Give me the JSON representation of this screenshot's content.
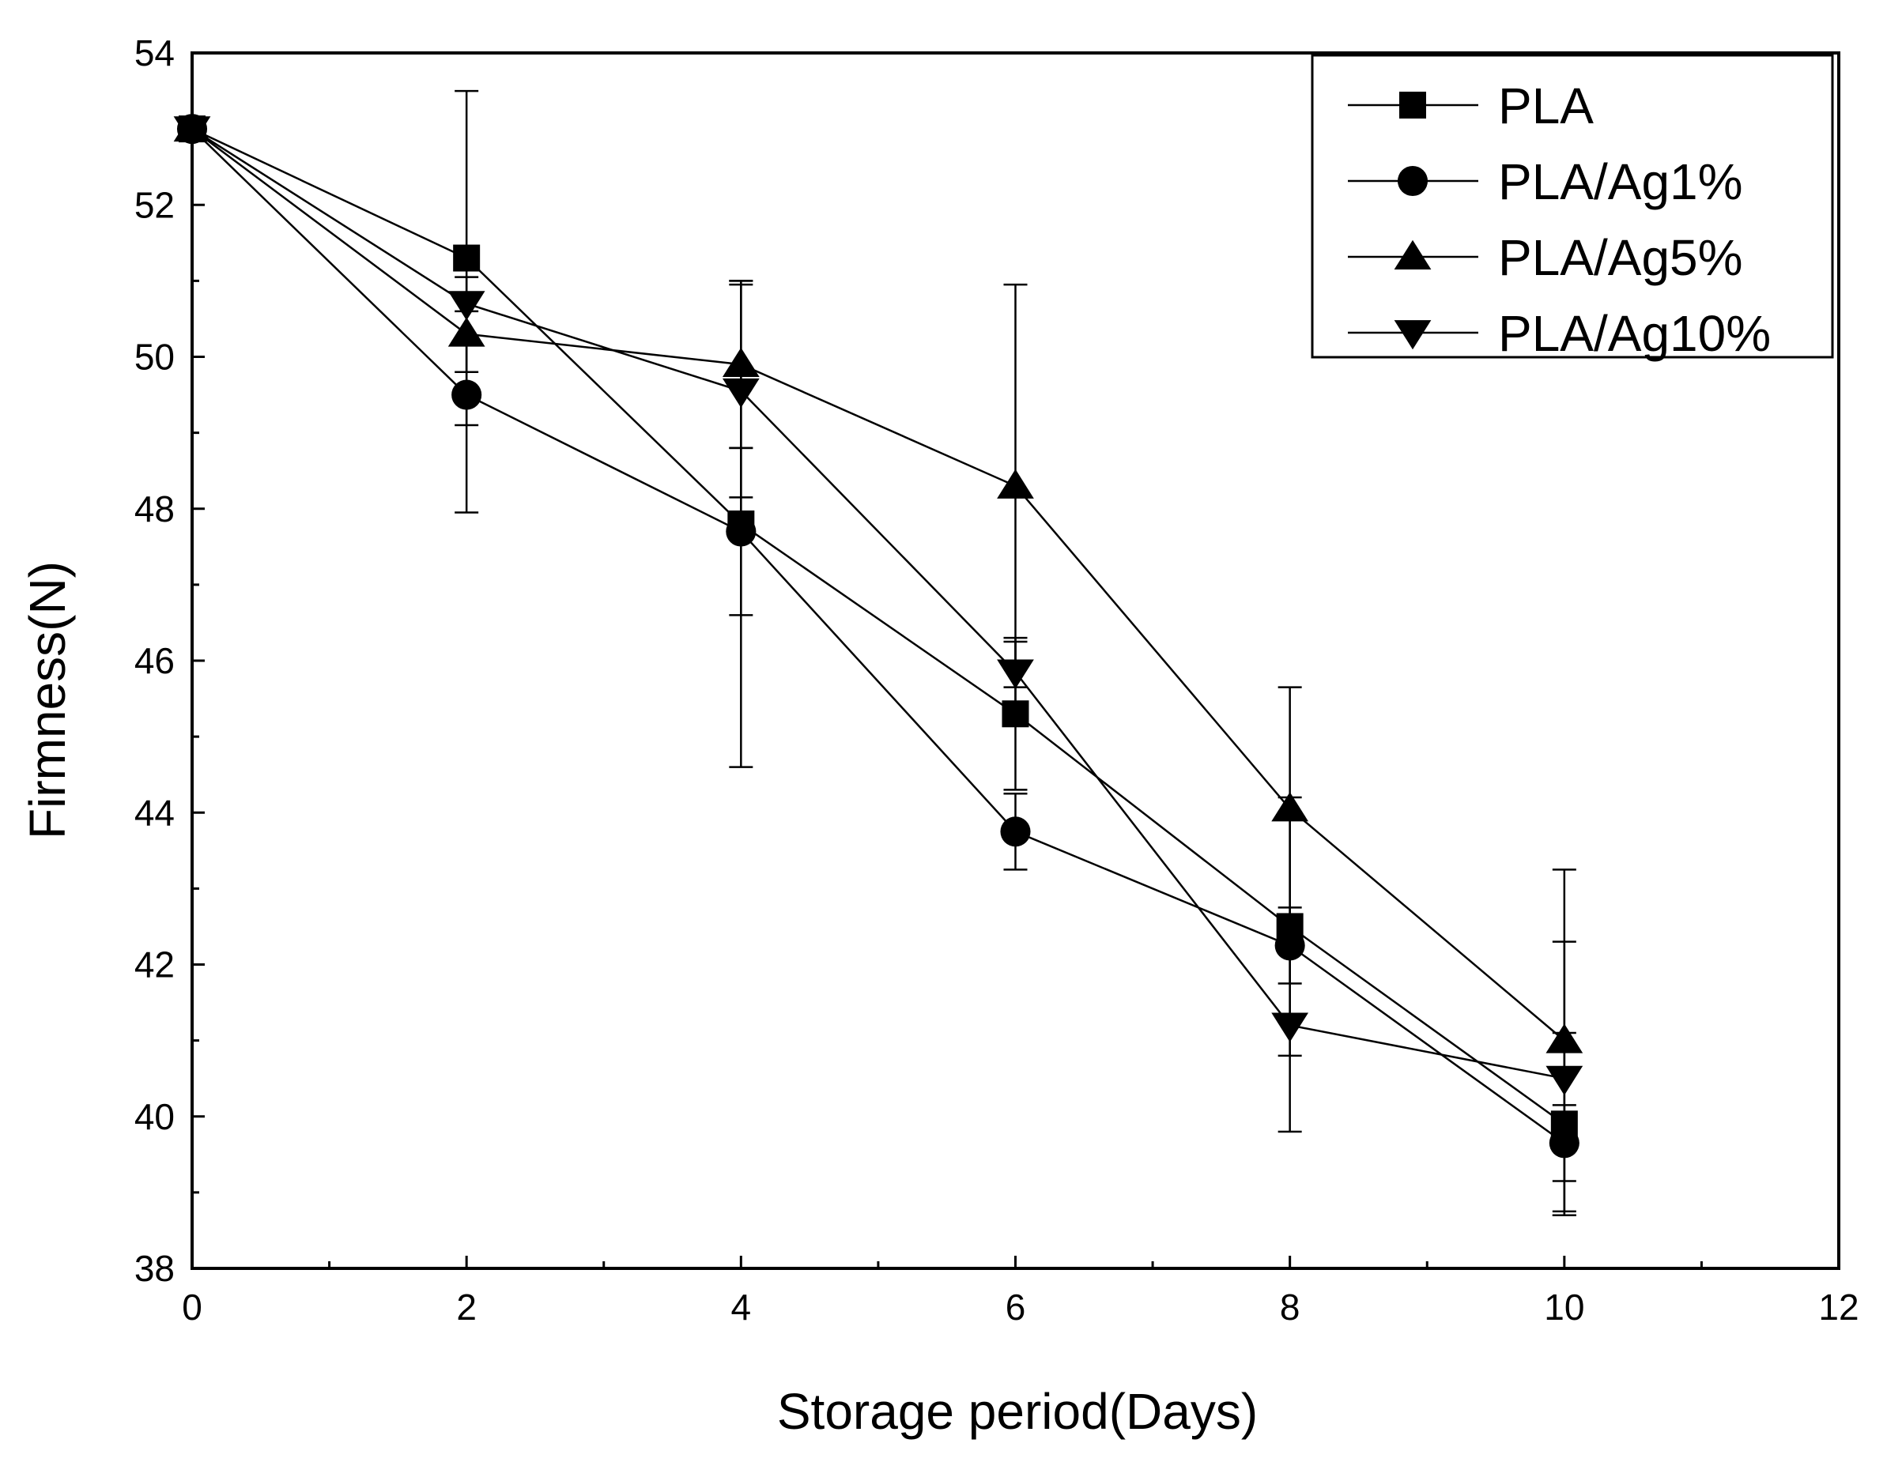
{
  "chart_data": {
    "type": "line",
    "title": "",
    "xlabel": "Storage period(Days)",
    "ylabel": "Firmness(N)",
    "xlim": [
      0,
      12
    ],
    "ylim": [
      38,
      54
    ],
    "xticks": [
      0,
      2,
      4,
      6,
      8,
      10,
      12
    ],
    "yticks": [
      38,
      40,
      42,
      44,
      46,
      48,
      50,
      52,
      54
    ],
    "grid": false,
    "legend_position": "top-right",
    "x": [
      0,
      2,
      4,
      6,
      8,
      10
    ],
    "series": [
      {
        "name": "PLA",
        "marker": "square",
        "values": [
          53.0,
          51.3,
          47.8,
          45.3,
          42.5,
          39.9
        ],
        "errors": [
          0.1,
          2.2,
          3.2,
          1.0,
          1.7,
          1.2
        ]
      },
      {
        "name": "PLA/Ag1%",
        "marker": "circle",
        "values": [
          53.0,
          49.5,
          47.7,
          43.75,
          42.25,
          39.65
        ],
        "errors": [
          0.1,
          1.55,
          1.1,
          0.5,
          0.5,
          0.5
        ]
      },
      {
        "name": "PLA/Ag5%",
        "marker": "triangle-up",
        "values": [
          53.0,
          50.3,
          49.9,
          48.3,
          44.05,
          41.0
        ],
        "errors": [
          0.1,
          0.5,
          1.1,
          2.65,
          1.6,
          2.25
        ]
      },
      {
        "name": "PLA/Ag10%",
        "marker": "triangle-down",
        "values": [
          53.0,
          50.7,
          49.55,
          45.85,
          41.2,
          40.5
        ],
        "errors": [
          0.1,
          0.1,
          1.4,
          0.4,
          1.4,
          1.8
        ]
      }
    ]
  }
}
